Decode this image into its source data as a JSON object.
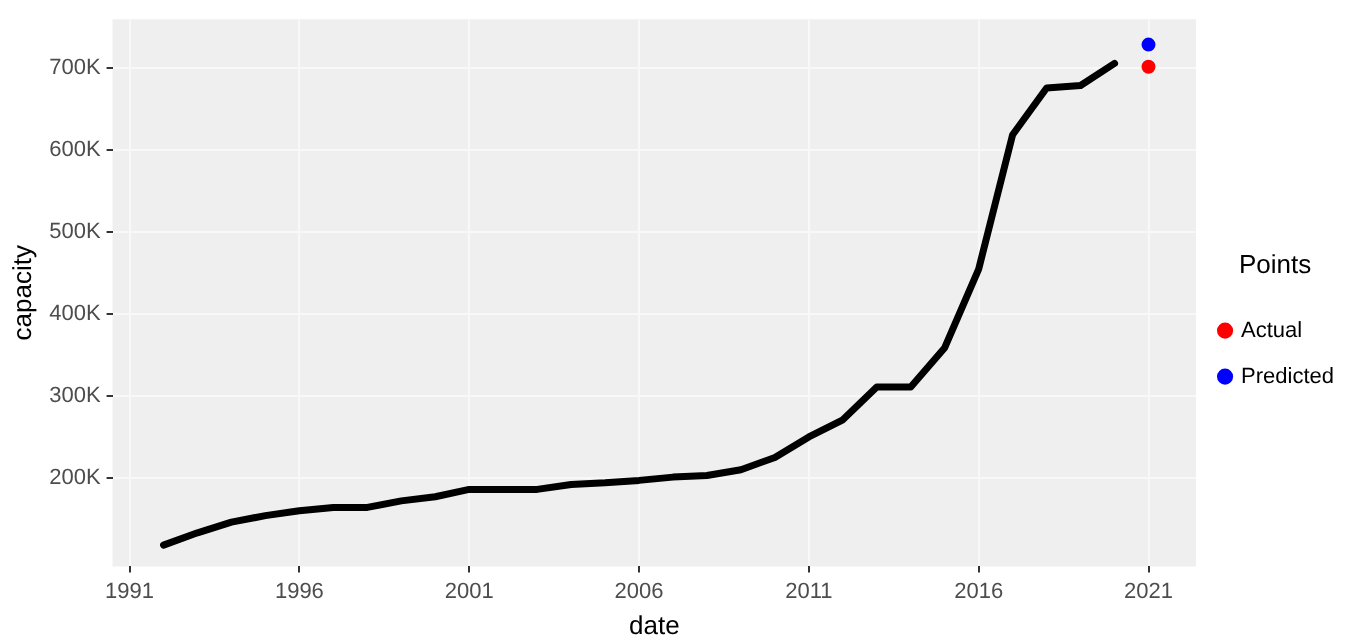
{
  "chart_data": {
    "type": "line",
    "xlabel": "date",
    "ylabel": "capacity",
    "legend": "right",
    "legend_title": "Points",
    "grid": true,
    "xlim": [
      1990.5,
      2022.4
    ],
    "xticks": [
      1991,
      1996,
      2001,
      2006,
      2011,
      2016,
      2021
    ],
    "ylim": [
      92000,
      760000
    ],
    "yticks": [
      {
        "value": 200000,
        "label": "200K"
      },
      {
        "value": 300000,
        "label": "300K"
      },
      {
        "value": 400000,
        "label": "400K"
      },
      {
        "value": 500000,
        "label": "500K"
      },
      {
        "value": 600000,
        "label": "600K"
      },
      {
        "value": 700000,
        "label": "700K"
      }
    ],
    "series": [
      {
        "type": "line",
        "color": "#000000",
        "marker": "none",
        "line_style": "solid",
        "x": [
          1992,
          1993,
          1994,
          1995,
          1996,
          1997,
          1998,
          1999,
          2000,
          2001,
          2002,
          2003,
          2004,
          2005,
          2006,
          2007,
          2008,
          2009,
          2010,
          2011,
          2012,
          2013,
          2014,
          2015,
          2016,
          2017,
          2018,
          2019,
          2020
        ],
        "values": [
          118000,
          133000,
          146000,
          154000,
          160000,
          164000,
          164000,
          172000,
          177000,
          186000,
          186000,
          186000,
          192000,
          194000,
          197000,
          201000,
          203000,
          210000,
          225000,
          250000,
          271000,
          311000,
          311000,
          359000,
          455000,
          619000,
          676000,
          679000,
          706000
        ]
      },
      {
        "type": "scatter",
        "name": "Actual",
        "color": "#ff0000",
        "marker": "circle",
        "x": [
          2021
        ],
        "values": [
          702000
        ]
      },
      {
        "type": "scatter",
        "name": "Predicted",
        "color": "#0000ff",
        "marker": "circle",
        "x": [
          2021
        ],
        "values": [
          729000
        ]
      }
    ]
  }
}
